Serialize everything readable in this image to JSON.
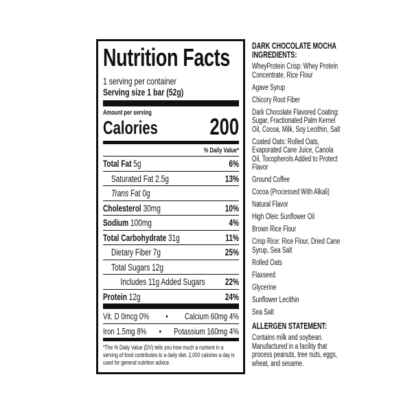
{
  "label": {
    "title": "Nutrition Facts",
    "servings_per_container": "1 serving per container",
    "serving_size": "Serving size 1 bar (52g)",
    "amount_per_serving": "Amount per serving",
    "calories_label": "Calories",
    "calories_value": "200",
    "daily_value_header": "% Daily Value*",
    "nutrients": [
      {
        "name": "Total Fat",
        "amount": "5g",
        "dv": "6%"
      },
      {
        "name": "Saturated Fat",
        "amount": "2.5g",
        "dv": "13%"
      },
      {
        "name": "Trans",
        "name_suffix": "Fat",
        "amount": "0g",
        "dv": ""
      },
      {
        "name": "Cholesterol",
        "amount": "30mg",
        "dv": "10%"
      },
      {
        "name": "Sodium",
        "amount": "100mg",
        "dv": "4%"
      },
      {
        "name": "Total Carbohydrate",
        "amount": "31g",
        "dv": "11%"
      },
      {
        "name": "Dietary Fiber",
        "amount": "7g",
        "dv": "25%"
      },
      {
        "name": "Total Sugars",
        "amount": "12g",
        "dv": ""
      },
      {
        "name": "Includes 11g Added Sugars",
        "amount": "",
        "dv": "22%"
      },
      {
        "name": "Protein",
        "amount": "12g",
        "dv": "24%"
      }
    ],
    "vitamins": [
      {
        "left": "Vit. D 0mcg 0%",
        "sep": "•",
        "right": "Calcium 60mg 4%"
      },
      {
        "left": "Iron 1.5mg 8%",
        "sep": "•",
        "right": "Potassium 160mg 4%"
      }
    ],
    "footnote": "*The % Daily Value (DV) tells you how much a nutrient in a serving of food contributes to a daily diet. 2,000 calories a day is used for general nutrition advice."
  },
  "ingredients": {
    "heading": "DARK CHOCOLATE MOCHA INGREDIENTS:",
    "items": [
      "WheyProtein Crisp: Whey Protein Concentrate, Rice Flour",
      "Agave Syrup",
      "Chicory Root Fiber",
      "Dark Chocolate Flavored Coating: Sugar, Fractionated Palm Kernel Oil, Cocoa, Milk, Soy Lecithin, Salt",
      "Coated Oats: Rolled Oats, Evaporated Cane Juice, Canola Oil, Tocopherols Added to Protect Flavor",
      "Ground Coffee",
      "Cocoa (Processed With Alkali)",
      "Natural Flavor",
      "High Oleic Sunflower Oil",
      "Brown Rice Flour",
      "Crisp Rice: Rice Flour, Dried Cane Syrup, Sea Salt",
      "Rolled Oats",
      "Flaxseed",
      "Glycerine",
      "Sunflower Lecithin",
      "Sea Salt"
    ],
    "allergen_heading": "ALLERGEN STATEMENT:",
    "allergen_text": "Contains milk and soybean. Manufactured in a facility that process peanuts, tree nuts, eggs, wheat, and sesame."
  }
}
